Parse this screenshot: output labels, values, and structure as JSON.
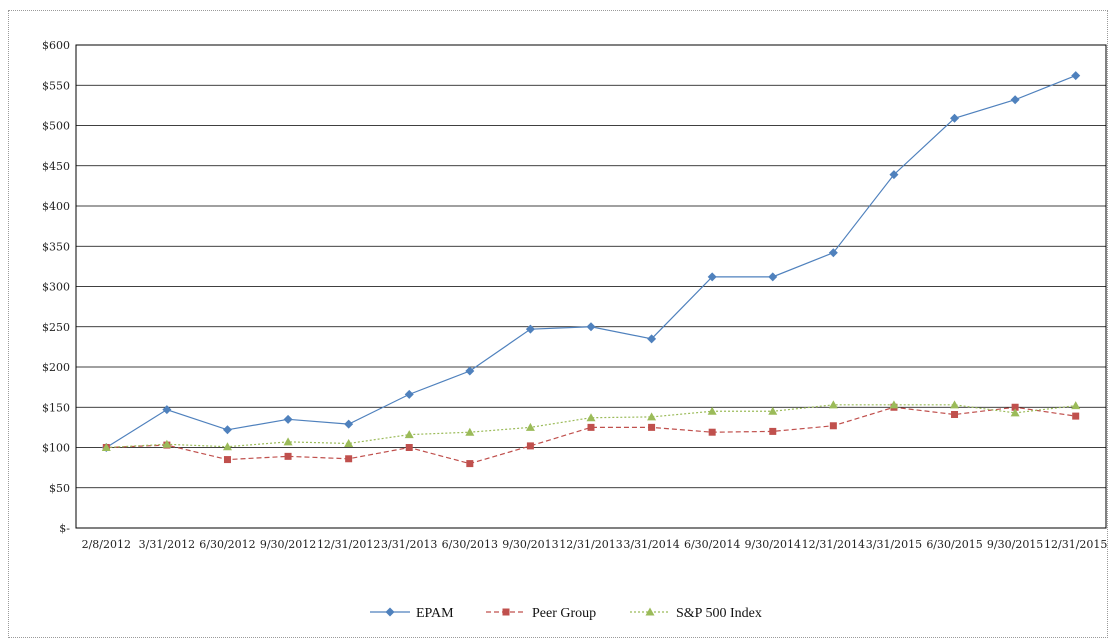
{
  "chart_data": {
    "type": "line",
    "title": "",
    "xlabel": "",
    "ylabel": "",
    "categories": [
      "2/8/2012",
      "3/31/2012",
      "6/30/2012",
      "9/30/2012",
      "12/31/2012",
      "3/31/2013",
      "6/30/2013",
      "9/30/2013",
      "12/31/2013",
      "3/31/2014",
      "6/30/2014",
      "9/30/2014",
      "12/31/2014",
      "3/31/2015",
      "6/30/2015",
      "9/30/2015",
      "12/31/2015"
    ],
    "ylim": [
      0,
      600
    ],
    "yticks": [
      0,
      50,
      100,
      150,
      200,
      250,
      300,
      350,
      400,
      450,
      500,
      550,
      600
    ],
    "ytick_labels": [
      "$-",
      "$50",
      "$100",
      "$150",
      "$200",
      "$250",
      "$300",
      "$350",
      "$400",
      "$450",
      "$500",
      "$550",
      "$600"
    ],
    "grid": "horizontal",
    "legend_position": "bottom",
    "series": [
      {
        "name": "EPAM",
        "color": "#4f81bd",
        "marker": "diamond",
        "dash": "solid",
        "values": [
          100,
          147,
          122,
          135,
          129,
          166,
          195,
          247,
          250,
          235,
          312,
          312,
          342,
          439,
          509,
          532,
          562
        ]
      },
      {
        "name": "Peer Group",
        "color": "#c0504d",
        "marker": "square",
        "dash": "dashed",
        "values": [
          100,
          103,
          85,
          89,
          86,
          100,
          80,
          102,
          125,
          125,
          119,
          120,
          127,
          150,
          141,
          150,
          139
        ]
      },
      {
        "name": "S&P 500 Index",
        "color": "#9bbb59",
        "marker": "triangle",
        "dash": "dotted",
        "values": [
          100,
          104,
          101,
          107,
          105,
          116,
          119,
          125,
          137,
          138,
          145,
          145,
          153,
          153,
          153,
          143,
          152
        ]
      }
    ]
  }
}
